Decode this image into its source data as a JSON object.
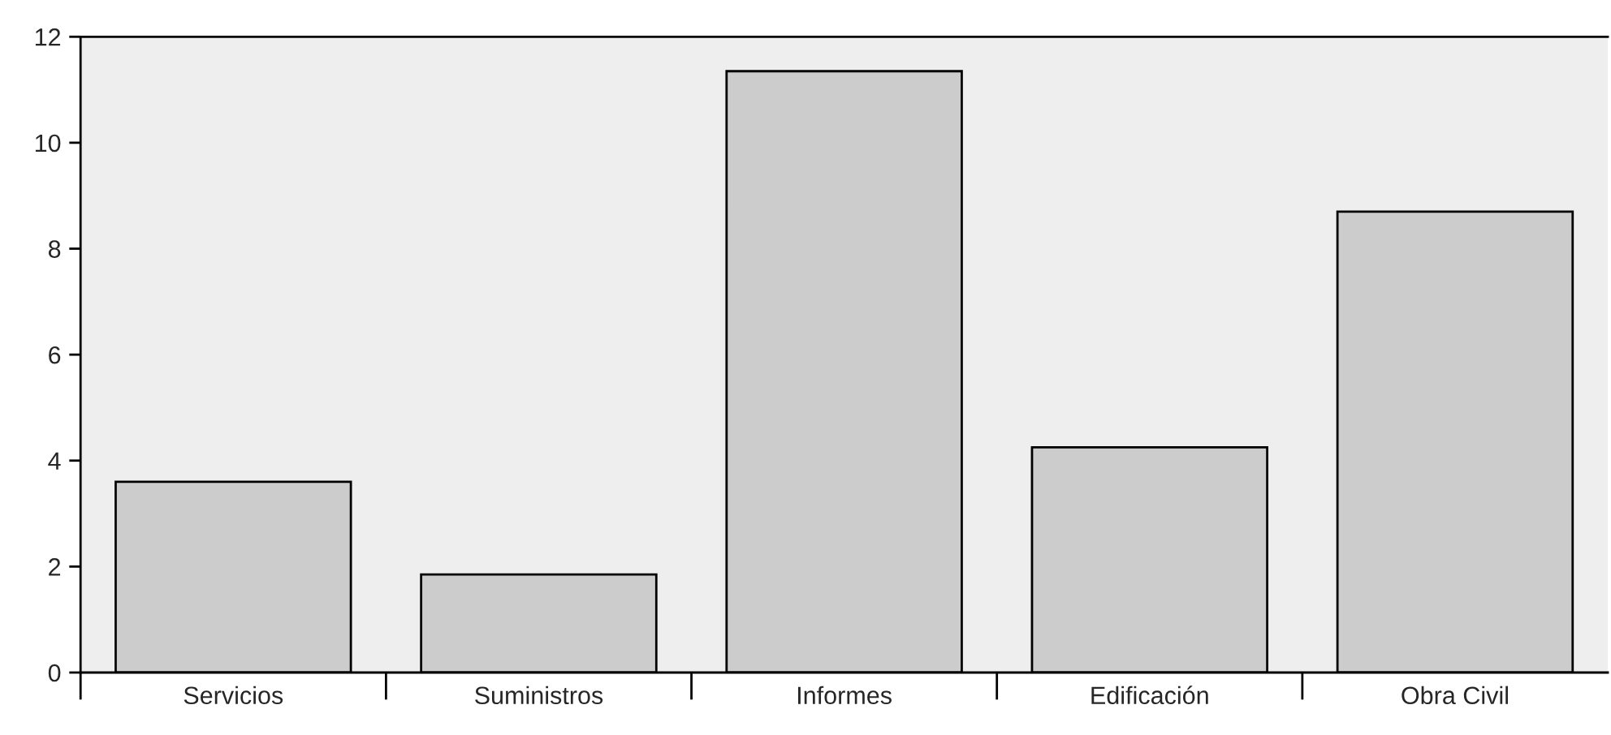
{
  "chart_data": {
    "type": "bar",
    "categories": [
      "Servicios",
      "Suministros",
      "Informes",
      "Edificación",
      "Obra Civil"
    ],
    "values": [
      3.6,
      1.85,
      11.35,
      4.25,
      8.7
    ],
    "color": "#cccccc",
    "ylim": [
      0,
      12
    ],
    "yticks": [
      0,
      2,
      4,
      6,
      8,
      10,
      12
    ],
    "grid": false,
    "legend": false
  }
}
